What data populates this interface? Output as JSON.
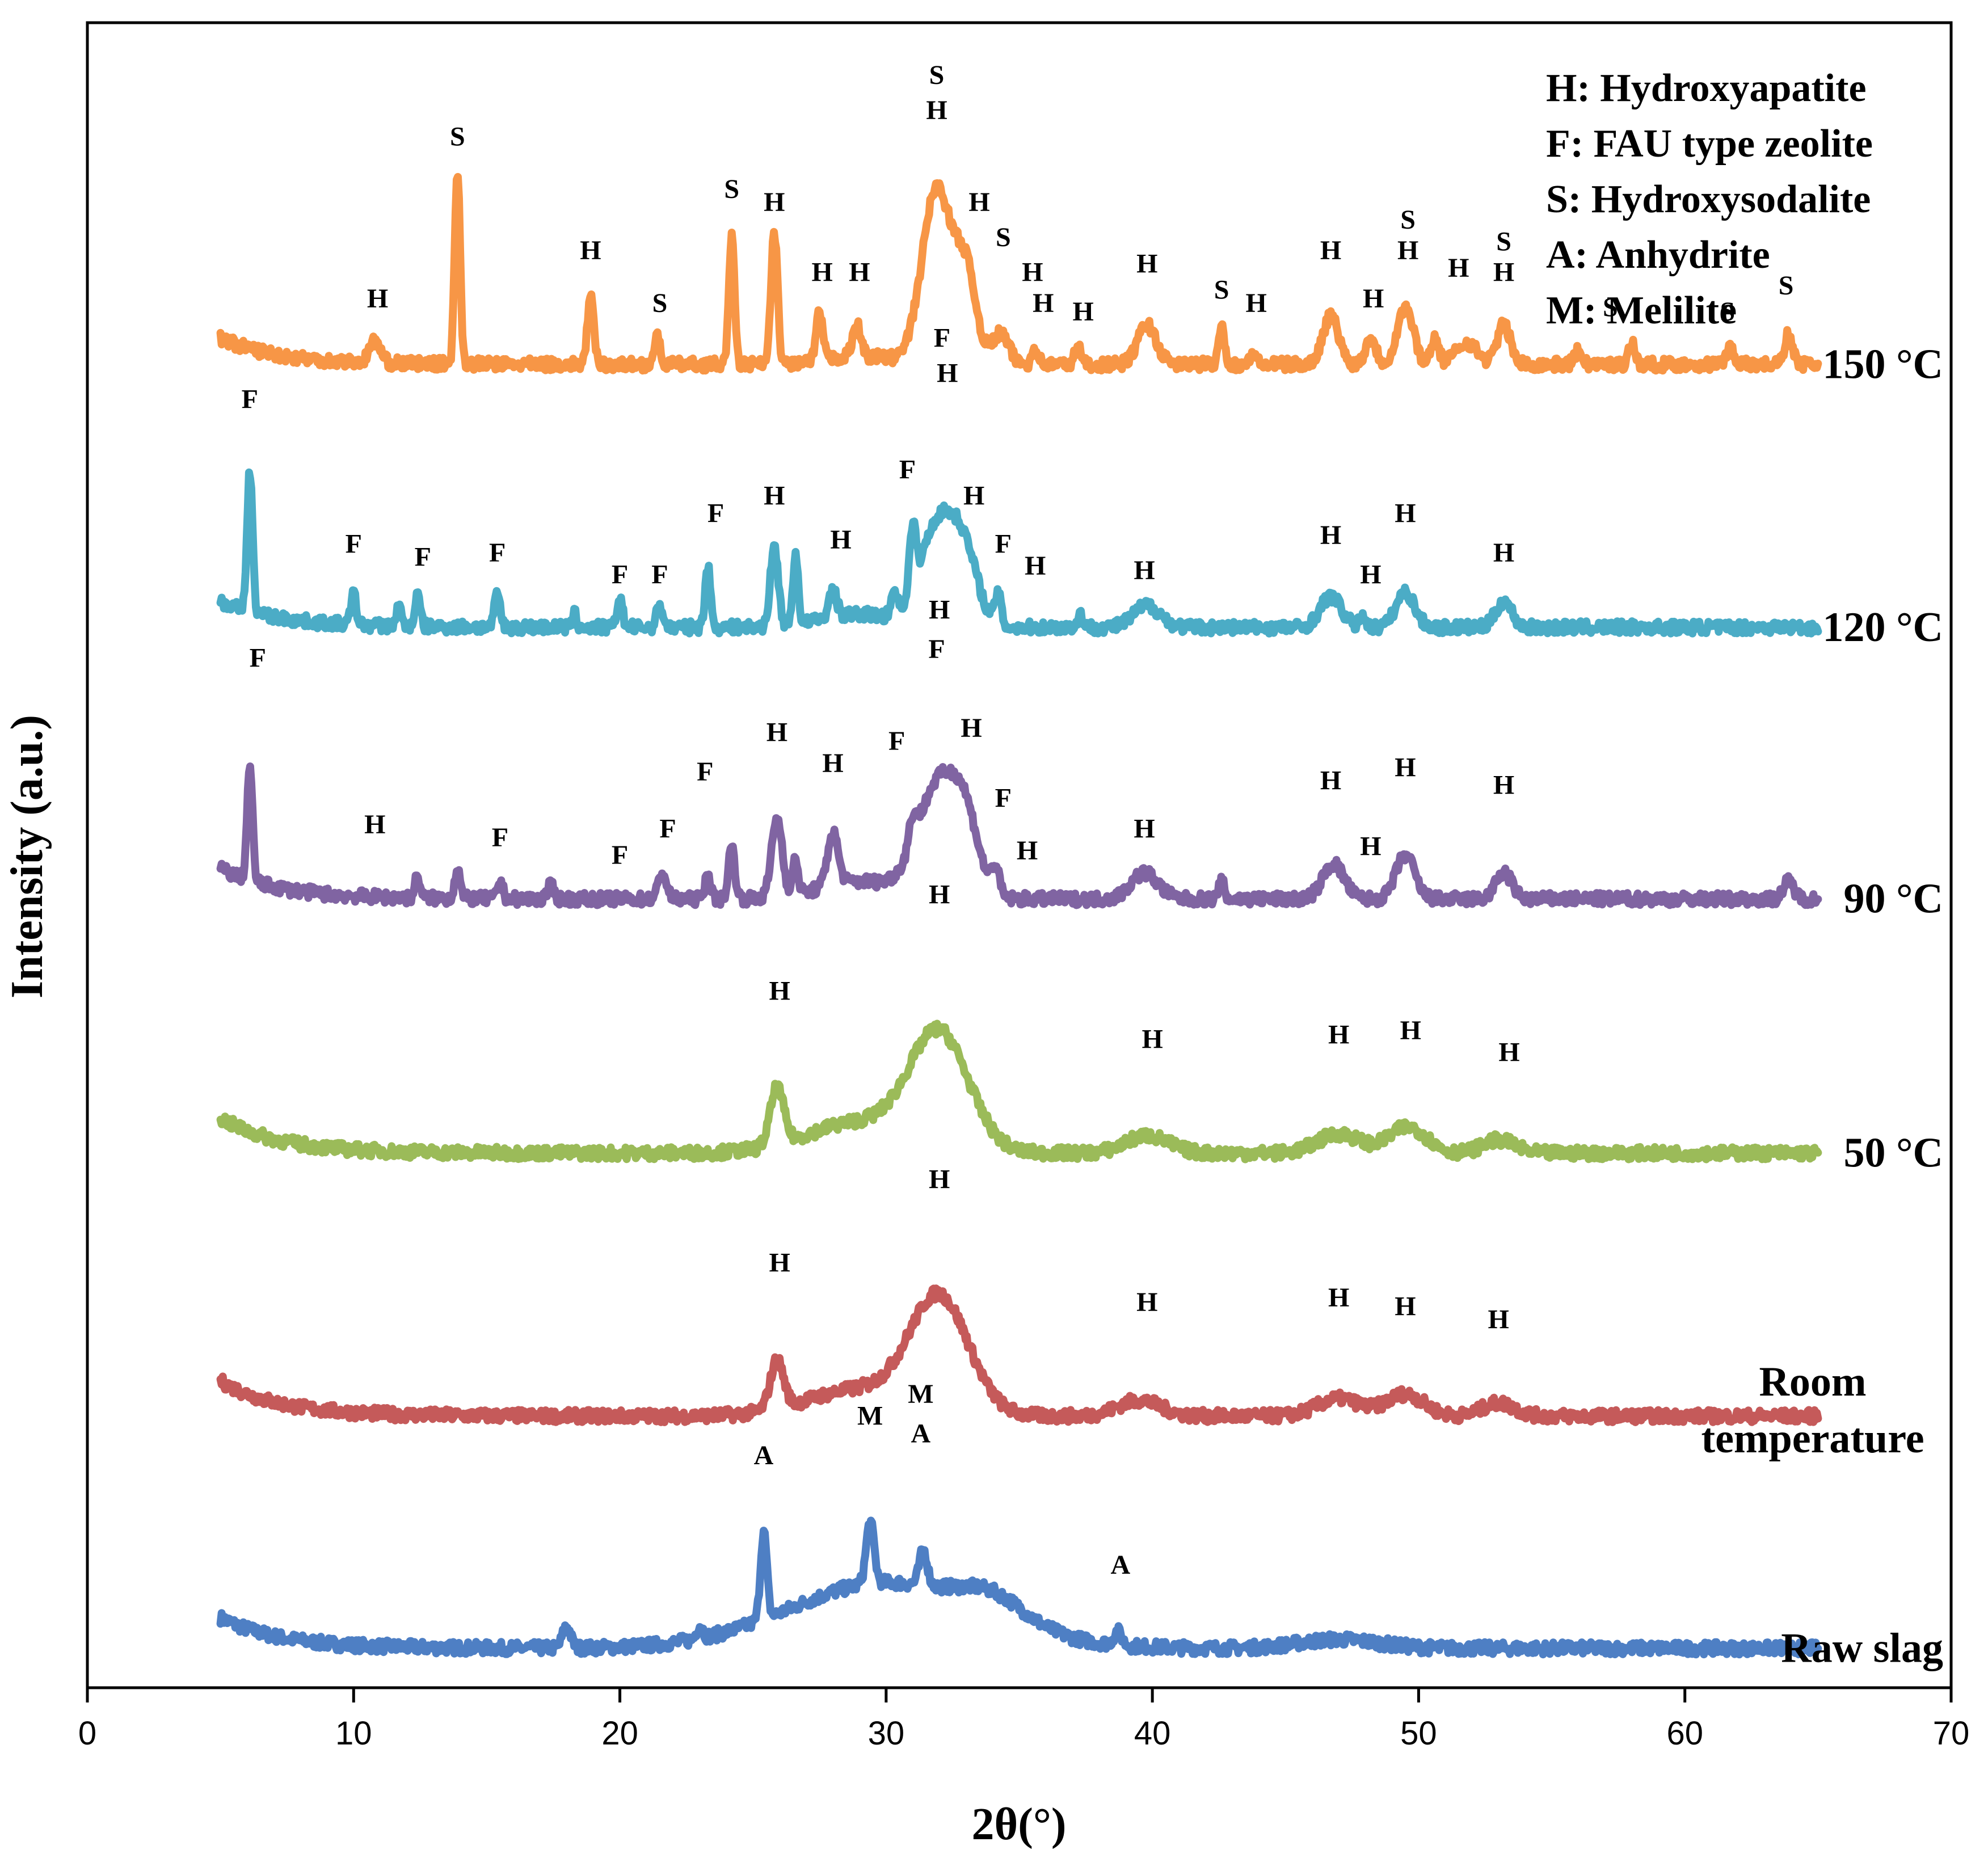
{
  "chart_data": {
    "type": "line",
    "title": "",
    "xlabel": "2θ(°)",
    "ylabel": "Intensity (a.u.)",
    "xlim": [
      0,
      70
    ],
    "xticks": [
      0,
      10,
      20,
      30,
      40,
      50,
      60,
      70
    ],
    "ylim": [
      0,
      19
    ],
    "ygrid": false,
    "x_start": 5,
    "x_end": 65,
    "legend_position": "top-right",
    "legend": [
      "H: Hydroxyapatite",
      "F: FAU type zeolite",
      "S: Hydroxysodalite",
      "A: Anhydrite",
      "M: Melilite"
    ],
    "series": [
      {
        "name": "Raw slag",
        "label_lines": [
          "Raw slag"
        ],
        "color": "#4e7fc4",
        "baseline": 0.45,
        "start_bump": 0.35,
        "humps": [
          [
            30,
            0.75,
            3.6
          ],
          [
            34,
            0.25,
            1.2
          ],
          [
            47,
            0.1,
            1.5
          ]
        ],
        "peaks": [
          [
            25.4,
            1.0,
            0.12
          ],
          [
            29.4,
            0.7,
            0.15
          ],
          [
            31.4,
            0.4,
            0.15
          ],
          [
            18,
            0.25,
            0.15
          ],
          [
            38.7,
            0.15,
            0.15
          ],
          [
            23,
            0.15,
            0.12
          ]
        ],
        "labels": [
          {
            "text": "A",
            "x": 25.4,
            "y": 2.55
          },
          {
            "text": "M",
            "x": 29.4,
            "y": 3.0
          },
          {
            "text": "M",
            "x": 31.3,
            "y": 3.25
          },
          {
            "text": "A",
            "x": 31.3,
            "y": 2.8
          },
          {
            "text": "A",
            "x": 38.8,
            "y": 1.3
          }
        ]
      },
      {
        "name": "Room temperature",
        "label_lines": [
          "Room",
          "temperature"
        ],
        "color": "#c55a5a",
        "baseline": 3.1,
        "start_bump": 0.4,
        "humps": [
          [
            32.0,
            1.3,
            1.1
          ],
          [
            29,
            0.3,
            2.0
          ],
          [
            39.5,
            0.18,
            0.8
          ],
          [
            47,
            0.2,
            0.8
          ],
          [
            49.5,
            0.25,
            0.7
          ],
          [
            53,
            0.15,
            0.6
          ]
        ],
        "peaks": [
          [
            25.9,
            0.55,
            0.25
          ]
        ],
        "labels": [
          {
            "text": "H",
            "x": 32.0,
            "y": 5.7
          },
          {
            "text": "H",
            "x": 26.0,
            "y": 4.75
          },
          {
            "text": "H",
            "x": 39.8,
            "y": 4.3
          },
          {
            "text": "H",
            "x": 47.0,
            "y": 4.35
          },
          {
            "text": "H",
            "x": 49.5,
            "y": 4.25
          },
          {
            "text": "H",
            "x": 53.0,
            "y": 4.1
          }
        ]
      },
      {
        "name": "50 °C",
        "label_lines": [
          "50 °C"
        ],
        "color": "#9bbb59",
        "baseline": 6.1,
        "start_bump": 0.4,
        "humps": [
          [
            32.0,
            1.3,
            1.1
          ],
          [
            29,
            0.35,
            2.0
          ],
          [
            39.8,
            0.2,
            0.8
          ],
          [
            47,
            0.22,
            0.8
          ],
          [
            49.6,
            0.3,
            0.7
          ],
          [
            53,
            0.15,
            0.6
          ]
        ],
        "peaks": [
          [
            25.9,
            0.65,
            0.25
          ]
        ],
        "labels": [
          {
            "text": "H",
            "x": 32.0,
            "y": 8.95
          },
          {
            "text": "H",
            "x": 26.0,
            "y": 7.85
          },
          {
            "text": "H",
            "x": 40.0,
            "y": 7.3
          },
          {
            "text": "H",
            "x": 47.0,
            "y": 7.35
          },
          {
            "text": "H",
            "x": 49.7,
            "y": 7.4
          },
          {
            "text": "H",
            "x": 53.4,
            "y": 7.15
          }
        ]
      },
      {
        "name": "90 °C",
        "label_lines": [
          "90 °C"
        ],
        "color": "#8064a2",
        "baseline": 9.0,
        "start_bump": 0.35,
        "humps": [
          [
            32.0,
            1.3,
            0.8
          ],
          [
            33.0,
            0.6,
            0.5
          ],
          [
            29,
            0.2,
            1.5
          ],
          [
            39.7,
            0.3,
            0.5
          ],
          [
            46.8,
            0.4,
            0.4
          ],
          [
            49.5,
            0.5,
            0.35
          ],
          [
            53.2,
            0.3,
            0.3
          ]
        ],
        "peaks": [
          [
            6.1,
            1.3,
            0.1
          ],
          [
            25.9,
            0.9,
            0.2
          ],
          [
            28.0,
            0.6,
            0.2
          ],
          [
            24.2,
            0.6,
            0.12
          ],
          [
            26.6,
            0.4,
            0.1
          ],
          [
            31.0,
            0.3,
            0.15
          ],
          [
            34.1,
            0.3,
            0.15
          ],
          [
            21.6,
            0.3,
            0.15
          ],
          [
            23.3,
            0.3,
            0.1
          ],
          [
            12.4,
            0.25,
            0.1
          ],
          [
            13.9,
            0.35,
            0.1
          ],
          [
            15.5,
            0.2,
            0.1
          ],
          [
            42.6,
            0.2,
            0.1
          ],
          [
            17.4,
            0.15,
            0.12
          ],
          [
            63.9,
            0.2,
            0.2
          ]
        ],
        "labels": [
          {
            "text": "F",
            "x": 6.4,
            "y": 11.65
          },
          {
            "text": "H",
            "x": 10.8,
            "y": 9.75
          },
          {
            "text": "F",
            "x": 15.5,
            "y": 9.6
          },
          {
            "text": "F",
            "x": 20.0,
            "y": 9.4
          },
          {
            "text": "F",
            "x": 21.8,
            "y": 9.7
          },
          {
            "text": "F",
            "x": 23.2,
            "y": 10.35
          },
          {
            "text": "H",
            "x": 25.9,
            "y": 10.8
          },
          {
            "text": "H",
            "x": 28.0,
            "y": 10.45
          },
          {
            "text": "F",
            "x": 30.4,
            "y": 10.7
          },
          {
            "text": "H",
            "x": 32.0,
            "y": 12.2
          },
          {
            "text": "F",
            "x": 31.9,
            "y": 11.75
          },
          {
            "text": "H",
            "x": 33.2,
            "y": 10.85
          },
          {
            "text": "F",
            "x": 34.4,
            "y": 10.05
          },
          {
            "text": "H",
            "x": 35.3,
            "y": 9.45
          },
          {
            "text": "H",
            "x": 39.7,
            "y": 9.7
          },
          {
            "text": "H",
            "x": 46.7,
            "y": 10.25
          },
          {
            "text": "H",
            "x": 48.2,
            "y": 9.5
          },
          {
            "text": "H",
            "x": 49.5,
            "y": 10.4
          },
          {
            "text": "H",
            "x": 53.2,
            "y": 10.2
          }
        ]
      },
      {
        "name": "120 °C",
        "label_lines": [
          "120 °C"
        ],
        "color": "#4bacc6",
        "baseline": 12.1,
        "start_bump": 0.3,
        "humps": [
          [
            32.0,
            1.2,
            0.7
          ],
          [
            33.0,
            0.6,
            0.5
          ],
          [
            29,
            0.15,
            1.4
          ],
          [
            39.8,
            0.25,
            0.5
          ],
          [
            46.7,
            0.35,
            0.4
          ],
          [
            49.5,
            0.4,
            0.35
          ],
          [
            53.2,
            0.3,
            0.3
          ]
        ],
        "peaks": [
          [
            6.1,
            1.6,
            0.1
          ],
          [
            10.0,
            0.35,
            0.1
          ],
          [
            11.7,
            0.25,
            0.08
          ],
          [
            12.4,
            0.35,
            0.1
          ],
          [
            15.4,
            0.4,
            0.1
          ],
          [
            18.3,
            0.15,
            0.08
          ],
          [
            20.0,
            0.35,
            0.1
          ],
          [
            21.5,
            0.25,
            0.12
          ],
          [
            23.3,
            0.7,
            0.1
          ],
          [
            25.8,
            0.9,
            0.15
          ],
          [
            26.6,
            0.8,
            0.1
          ],
          [
            28.0,
            0.3,
            0.15
          ],
          [
            30.3,
            0.3,
            0.1
          ],
          [
            31.0,
            0.7,
            0.12
          ],
          [
            34.2,
            0.35,
            0.12
          ],
          [
            37.3,
            0.15,
            0.1
          ],
          [
            47.9,
            0.15,
            0.1
          ]
        ],
        "labels": [
          {
            "text": "F",
            "x": 6.1,
            "y": 14.6
          },
          {
            "text": "F",
            "x": 10.0,
            "y": 12.95
          },
          {
            "text": "F",
            "x": 12.6,
            "y": 12.8
          },
          {
            "text": "F",
            "x": 15.4,
            "y": 12.85
          },
          {
            "text": "F",
            "x": 20.0,
            "y": 12.6
          },
          {
            "text": "F",
            "x": 21.5,
            "y": 12.6
          },
          {
            "text": "F",
            "x": 23.6,
            "y": 13.3
          },
          {
            "text": "H",
            "x": 25.8,
            "y": 13.5
          },
          {
            "text": "H",
            "x": 28.3,
            "y": 13.0
          },
          {
            "text": "F",
            "x": 30.8,
            "y": 13.8
          },
          {
            "text": "F",
            "x": 32.1,
            "y": 15.3
          },
          {
            "text": "H",
            "x": 32.3,
            "y": 14.9
          },
          {
            "text": "H",
            "x": 33.3,
            "y": 13.5
          },
          {
            "text": "F",
            "x": 34.4,
            "y": 12.95
          },
          {
            "text": "H",
            "x": 35.6,
            "y": 12.7
          },
          {
            "text": "H",
            "x": 39.7,
            "y": 12.65
          },
          {
            "text": "H",
            "x": 46.7,
            "y": 13.05
          },
          {
            "text": "H",
            "x": 48.2,
            "y": 12.6
          },
          {
            "text": "H",
            "x": 49.5,
            "y": 13.3
          },
          {
            "text": "H",
            "x": 53.2,
            "y": 12.85
          }
        ]
      },
      {
        "name": "150 °C",
        "label_lines": [
          "150 °C"
        ],
        "color": "#f79646",
        "baseline": 15.1,
        "start_bump": 0.3,
        "humps": [
          [
            31.9,
            2.0,
            0.55
          ],
          [
            33.0,
            1.0,
            0.4
          ],
          [
            34.3,
            0.35,
            0.3
          ],
          [
            39.8,
            0.45,
            0.35
          ],
          [
            46.7,
            0.55,
            0.3
          ],
          [
            49.5,
            0.65,
            0.3
          ],
          [
            51.8,
            0.25,
            0.4
          ],
          [
            53.2,
            0.45,
            0.25
          ],
          [
            29,
            0.1,
            1.2
          ]
        ],
        "peaks": [
          [
            10.8,
            0.25,
            0.2
          ],
          [
            13.9,
            2.2,
            0.1
          ],
          [
            18.9,
            0.75,
            0.12
          ],
          [
            21.4,
            0.3,
            0.12
          ],
          [
            24.2,
            1.5,
            0.1
          ],
          [
            25.8,
            1.5,
            0.12
          ],
          [
            27.5,
            0.55,
            0.12
          ],
          [
            28.9,
            0.35,
            0.15
          ],
          [
            35.6,
            0.2,
            0.12
          ],
          [
            37.2,
            0.2,
            0.12
          ],
          [
            42.6,
            0.5,
            0.1
          ],
          [
            43.8,
            0.15,
            0.1
          ],
          [
            48.2,
            0.3,
            0.2
          ],
          [
            50.6,
            0.3,
            0.15
          ],
          [
            56.0,
            0.15,
            0.15
          ],
          [
            58.0,
            0.25,
            0.12
          ],
          [
            61.7,
            0.2,
            0.15
          ],
          [
            63.9,
            0.35,
            0.15
          ]
        ],
        "labels": [
          {
            "text": "H",
            "x": 10.9,
            "y": 15.75
          },
          {
            "text": "S",
            "x": 13.9,
            "y": 17.6
          },
          {
            "text": "H",
            "x": 18.9,
            "y": 16.3
          },
          {
            "text": "S",
            "x": 21.5,
            "y": 15.7
          },
          {
            "text": "S",
            "x": 24.2,
            "y": 17.0
          },
          {
            "text": "H",
            "x": 25.8,
            "y": 16.85
          },
          {
            "text": "H",
            "x": 27.6,
            "y": 16.05
          },
          {
            "text": "H",
            "x": 29.0,
            "y": 16.05
          },
          {
            "text": "S",
            "x": 31.9,
            "y": 18.3
          },
          {
            "text": "H",
            "x": 31.9,
            "y": 17.9
          },
          {
            "text": "H",
            "x": 33.5,
            "y": 16.85
          },
          {
            "text": "S",
            "x": 34.4,
            "y": 16.45
          },
          {
            "text": "H",
            "x": 35.5,
            "y": 16.05
          },
          {
            "text": "H",
            "x": 35.9,
            "y": 15.7
          },
          {
            "text": "H",
            "x": 37.4,
            "y": 15.6
          },
          {
            "text": "H",
            "x": 39.8,
            "y": 16.15
          },
          {
            "text": "S",
            "x": 42.6,
            "y": 15.85
          },
          {
            "text": "H",
            "x": 43.9,
            "y": 15.7
          },
          {
            "text": "H",
            "x": 46.7,
            "y": 16.3
          },
          {
            "text": "H",
            "x": 48.3,
            "y": 15.75
          },
          {
            "text": "S",
            "x": 49.6,
            "y": 16.65
          },
          {
            "text": "H",
            "x": 49.6,
            "y": 16.3
          },
          {
            "text": "H",
            "x": 51.5,
            "y": 16.1
          },
          {
            "text": "S",
            "x": 53.2,
            "y": 16.4
          },
          {
            "text": "H",
            "x": 53.2,
            "y": 16.05
          },
          {
            "text": "S",
            "x": 57.2,
            "y": 15.65
          },
          {
            "text": "S",
            "x": 61.6,
            "y": 15.6
          },
          {
            "text": "S",
            "x": 63.8,
            "y": 15.9
          }
        ]
      }
    ]
  }
}
